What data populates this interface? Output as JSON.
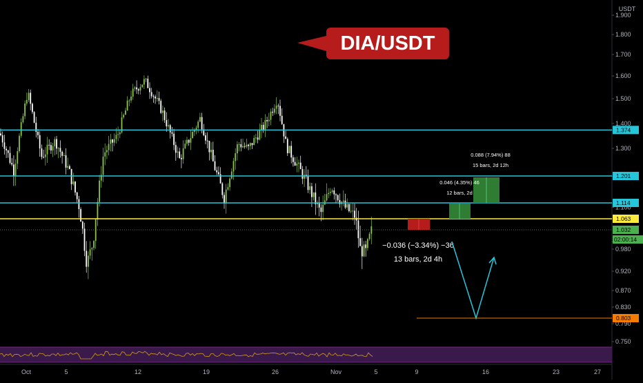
{
  "chart_data": {
    "type": "candlestick",
    "title": "DIA/USDT",
    "currency": "USDT",
    "y_ticks": [
      "1.900",
      "1.800",
      "1.700",
      "1.600",
      "1.500",
      "1.400",
      "1.300",
      "1.200",
      "1.100",
      "1.000",
      "0.980",
      "0.920",
      "0.870",
      "0.830",
      "0.790",
      "0.750"
    ],
    "x_ticks": [
      "Oct",
      "5",
      "12",
      "19",
      "26",
      "Nov",
      "5",
      "9",
      "16",
      "23",
      "27"
    ],
    "price_levels": [
      {
        "name": "resistance-1374",
        "value": 1.374,
        "label": "1.374",
        "color": "#26c6da"
      },
      {
        "name": "resistance-1201",
        "value": 1.201,
        "label": "1.201",
        "color": "#26c6da"
      },
      {
        "name": "resistance-1114",
        "value": 1.114,
        "label": "1.114",
        "color": "#26c6da"
      },
      {
        "name": "support-1063",
        "value": 1.063,
        "label": "1.063",
        "color": "#ffeb3b"
      }
    ],
    "last_price": {
      "value": 1.032,
      "label": "1.032",
      "countdown": "02:00:14",
      "color": "#4caf50"
    },
    "target": {
      "value": 0.803,
      "label": "0.803",
      "color": "#f57c00"
    },
    "measures": [
      {
        "text1": "0.088 (7.94%) 88",
        "text2": "15 bars, 2d 12h"
      },
      {
        "text1": "0.046 (4.35%) 46",
        "text2": "12 bars, 2d"
      },
      {
        "text1": "−0.036 (−3.34%) −36",
        "text2": "13 bars, 2d 4h"
      }
    ],
    "colors": {
      "up": "#8bc34a",
      "down": "#ffffff",
      "background": "#000000",
      "indicator": "#9c27b0",
      "title_box": "#b71c1c"
    }
  }
}
